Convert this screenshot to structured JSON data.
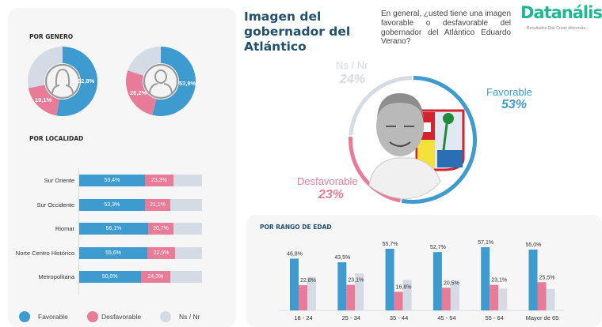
{
  "header": {
    "title": "Imagen del gobernador del Atlántico",
    "question": "En general, ¿usted tiene una imagen favorable o desfavorable del gobernador del Atlántico Eduardo Verano?",
    "logo": "Datanálisis",
    "logo_tagline": "- Resultados Que Crean diferencia -"
  },
  "colors": {
    "favorable": "#3d9bd0",
    "desfavorable": "#e87c98",
    "nsnr": "#d5dbe5"
  },
  "overall": {
    "favorable_label": "Favorable",
    "favorable_pct": "53%",
    "desfavorable_label": "Desfavorable",
    "desfavorable_pct": "23%",
    "nsnr_label": "Ns / Nr",
    "nsnr_pct": "24%"
  },
  "genero": {
    "title": "POR GENERO",
    "female": {
      "favorable": "52,8%",
      "desfavorable": "19,1%"
    },
    "male": {
      "favorable": "53,9%",
      "desfavorable": "26,2%"
    }
  },
  "localidad": {
    "title": "POR LOCALIDAD",
    "rows": [
      {
        "name": "Sur Oriente",
        "favorable": "53,4%",
        "desfavorable": "23,3%"
      },
      {
        "name": "Sur Occidente",
        "favorable": "53,3%",
        "desfavorable": "21,1%"
      },
      {
        "name": "Riomar",
        "favorable": "56,1%",
        "desfavorable": "20,7%"
      },
      {
        "name": "Norte Centro Histórico",
        "favorable": "55,6%",
        "desfavorable": "22,5%"
      },
      {
        "name": "Metropolitana",
        "favorable": "50,0%",
        "desfavorable": "24,3%"
      }
    ]
  },
  "legend": {
    "favorable": "Favorable",
    "desfavorable": "Desfavorable",
    "nsnr": "Ns / Nr"
  },
  "age_title": "POR RANGO DE EDAD",
  "age_labels": {
    "fav": [
      "46,8%",
      "43,5%",
      "55,7%",
      "52,7%",
      "57,1%",
      "55,0%"
    ],
    "desf": [
      "22,8%",
      "23,1%",
      "16,8%",
      "20,5%",
      "23,1%",
      "25,5%"
    ]
  },
  "chart_data": [
    {
      "type": "pie",
      "title": "Imagen del gobernador del Atlántico",
      "categories": [
        "Favorable",
        "Desfavorable",
        "Ns / Nr"
      ],
      "values": [
        53,
        23,
        24
      ]
    },
    {
      "type": "pie",
      "title": "POR GENERO - Mujer",
      "categories": [
        "Favorable",
        "Desfavorable",
        "Ns / Nr"
      ],
      "values": [
        52.8,
        19.1,
        28.1
      ]
    },
    {
      "type": "pie",
      "title": "POR GENERO - Hombre",
      "categories": [
        "Favorable",
        "Desfavorable",
        "Ns / Nr"
      ],
      "values": [
        53.9,
        26.2,
        19.9
      ]
    },
    {
      "type": "bar",
      "title": "POR LOCALIDAD",
      "orientation": "horizontal-stacked",
      "categories": [
        "Sur Oriente",
        "Sur Occidente",
        "Riomar",
        "Norte Centro Histórico",
        "Metropolitana"
      ],
      "series": [
        {
          "name": "Favorable",
          "values": [
            53.4,
            53.3,
            56.1,
            55.6,
            50.0
          ]
        },
        {
          "name": "Desfavorable",
          "values": [
            23.3,
            21.1,
            20.7,
            22.5,
            24.3
          ]
        },
        {
          "name": "Ns / Nr",
          "values": [
            23.3,
            25.6,
            23.2,
            21.9,
            25.7
          ]
        }
      ],
      "legend": "bottom"
    },
    {
      "type": "bar",
      "title": "POR RANGO DE EDAD",
      "categories": [
        "18 - 24",
        "25 - 34",
        "35 - 44",
        "45 - 54",
        "55 - 64",
        "Mayor de 65"
      ],
      "series": [
        {
          "name": "Favorable",
          "values": [
            46.8,
            43.5,
            55.7,
            52.7,
            57.1,
            55.0
          ]
        },
        {
          "name": "Desfavorable",
          "values": [
            22.8,
            23.1,
            16.8,
            20.5,
            23.1,
            25.5
          ]
        },
        {
          "name": "Ns / Nr",
          "values": [
            30.4,
            33.4,
            27.5,
            26.8,
            19.8,
            19.5
          ]
        }
      ],
      "ylim": [
        0,
        60
      ]
    }
  ]
}
